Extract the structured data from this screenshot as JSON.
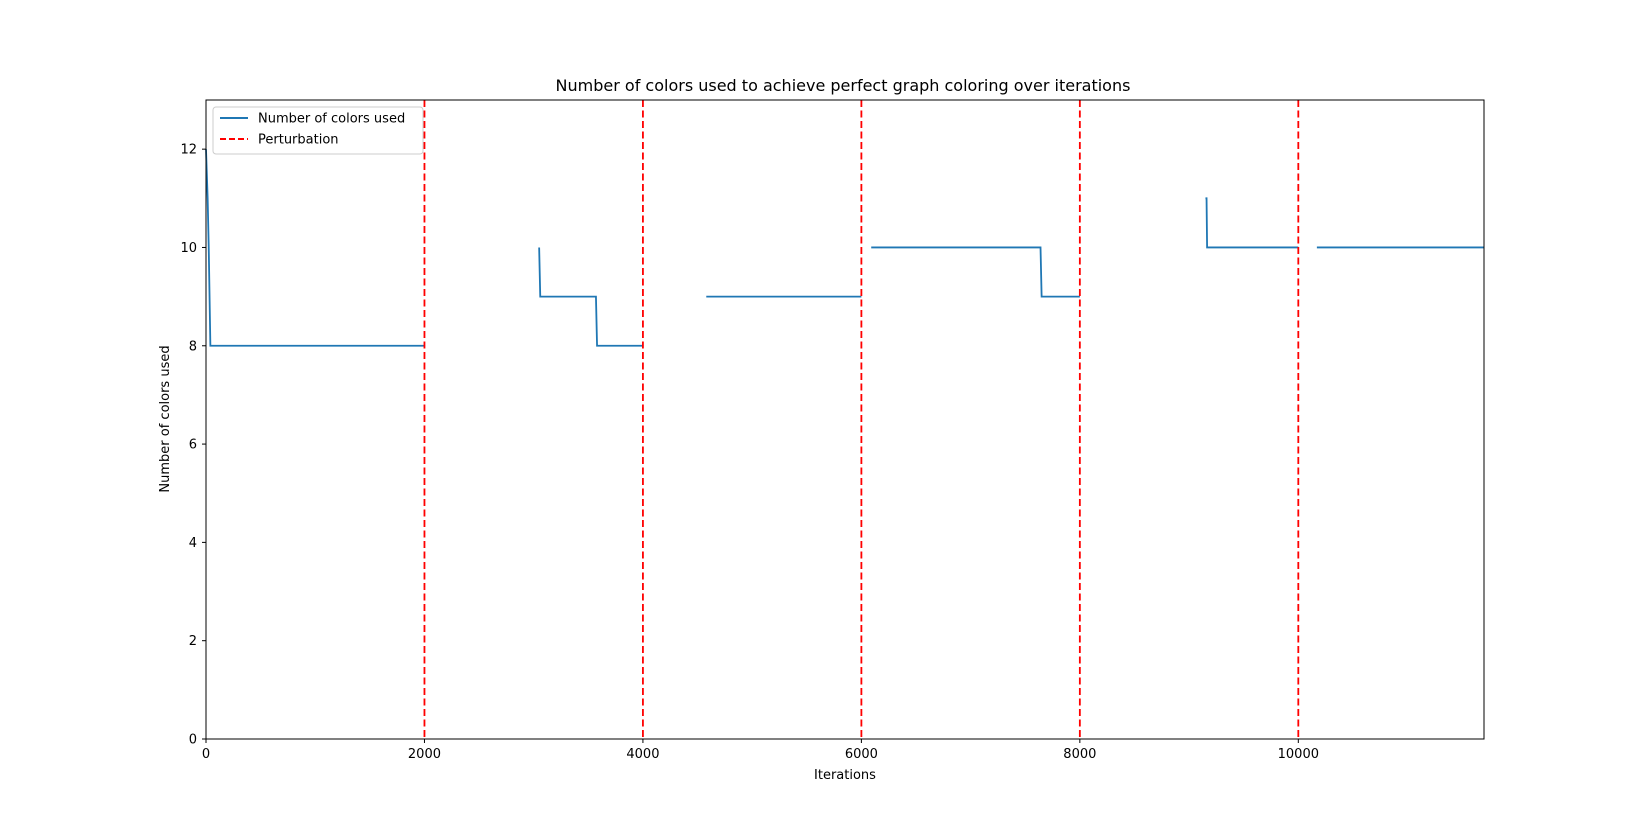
{
  "chart_data": {
    "type": "line",
    "title": "Number of colors used to achieve perfect graph coloring over iterations",
    "xlabel": "Iterations",
    "ylabel": "Number of colors used",
    "xlim": [
      0,
      11700
    ],
    "ylim": [
      0,
      13
    ],
    "x_ticks": [
      0,
      2000,
      4000,
      6000,
      8000,
      10000
    ],
    "y_ticks": [
      0,
      2,
      4,
      6,
      8,
      10,
      12
    ],
    "grid": false,
    "legend_position": "top-left",
    "legend": [
      {
        "label": "Number of colors used",
        "style": "solid",
        "color": "#1f77b4"
      },
      {
        "label": "Perturbation",
        "style": "dashed",
        "color": "#ff0000"
      }
    ],
    "series": [
      {
        "name": "Number of colors used",
        "color": "#1f77b4",
        "segments": [
          [
            [
              0,
              12
            ],
            [
              15,
              11
            ],
            [
              25,
              10
            ],
            [
              40,
              8
            ],
            [
              2000,
              8
            ]
          ],
          [
            [
              3050,
              10
            ],
            [
              3060,
              9
            ],
            [
              3570,
              9
            ],
            [
              3580,
              8
            ],
            [
              4000,
              8
            ]
          ],
          [
            [
              4580,
              9
            ],
            [
              6000,
              9
            ]
          ],
          [
            [
              6090,
              10
            ],
            [
              7640,
              10
            ],
            [
              7650,
              9
            ],
            [
              8000,
              9
            ]
          ],
          [
            [
              9150,
              11
            ],
            [
              9160,
              11
            ],
            [
              9165,
              10
            ],
            [
              10000,
              10
            ]
          ],
          [
            [
              10170,
              10
            ],
            [
              11700,
              10
            ]
          ]
        ]
      }
    ],
    "perturbations": {
      "name": "Perturbation",
      "color": "#ff0000",
      "x": [
        2000,
        4000,
        6000,
        8000,
        10000
      ]
    }
  }
}
